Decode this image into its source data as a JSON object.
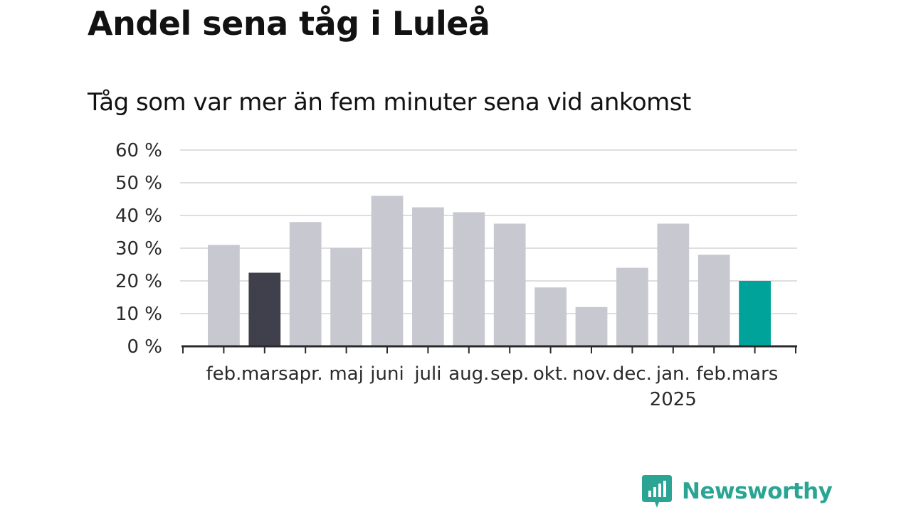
{
  "title": "Andel sena tåg i Luleå",
  "subtitle": "Tåg som var mer än fem minuter sena vid ankomst",
  "brand": {
    "name": "Newsworthy"
  },
  "colors": {
    "default_bar": "#c8c8d0",
    "highlight_previous": "#403f4c",
    "highlight_current": "#00a39a",
    "gridline": "#dedede",
    "axis": "#2a2a2a",
    "brand": "#2aa593"
  },
  "chart_data": {
    "type": "bar",
    "title": "Andel sena tåg i Luleå",
    "subtitle": "Tåg som var mer än fem minuter sena vid ankomst",
    "categories": [
      "feb.",
      "mars",
      "apr.",
      "maj",
      "juni",
      "juli",
      "aug.",
      "sep.",
      "okt.",
      "nov.",
      "dec.",
      "jan.",
      "feb.",
      "mars"
    ],
    "year_labels": [
      "",
      "",
      "",
      "",
      "",
      "",
      "",
      "",
      "",
      "",
      "",
      "2025",
      "",
      ""
    ],
    "values": [
      31,
      22.5,
      38,
      30,
      46,
      42.5,
      41,
      37.5,
      18,
      12,
      24,
      37.5,
      28,
      20
    ],
    "bar_roles": [
      "default",
      "previous",
      "default",
      "default",
      "default",
      "default",
      "default",
      "default",
      "default",
      "default",
      "default",
      "default",
      "default",
      "current"
    ],
    "ylim": [
      0,
      60
    ],
    "yticks": [
      0,
      10,
      20,
      30,
      40,
      50,
      60
    ],
    "ytick_labels": [
      "0 %",
      "10 %",
      "20 %",
      "30 %",
      "40 %",
      "50 %",
      "60 %"
    ],
    "xlabel": "",
    "ylabel": "",
    "grid": true,
    "legend": "none"
  }
}
